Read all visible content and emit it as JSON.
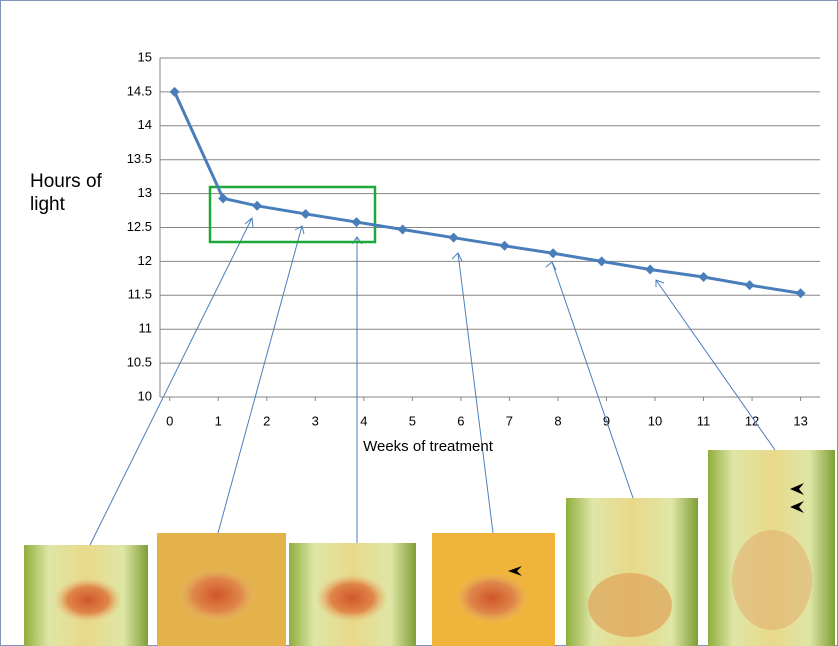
{
  "chart_data": {
    "type": "line",
    "x_label": "Weeks of treatment",
    "y_label": "Hours of light",
    "x": [
      0.1,
      1.1,
      1.8,
      2.8,
      3.85,
      4.8,
      5.85,
      6.9,
      7.9,
      8.9,
      9.9,
      11,
      11.95,
      13
    ],
    "series": [
      {
        "name": "Hours of light",
        "color": "#4a7ebb",
        "values": [
          14.5,
          12.93,
          12.82,
          12.7,
          12.58,
          12.47,
          12.35,
          12.23,
          12.12,
          12.0,
          11.88,
          11.77,
          11.65,
          11.53
        ]
      }
    ],
    "xlim": [
      -0.2,
      13.4
    ],
    "xticks": [
      0,
      1,
      2,
      3,
      4,
      5,
      6,
      7,
      8,
      9,
      10,
      11,
      12,
      13
    ],
    "ylim": [
      10,
      15
    ],
    "yticks": [
      10,
      10.5,
      11,
      11.5,
      12,
      12.5,
      13,
      13.5,
      14,
      14.5,
      15
    ],
    "grid": true
  }
}
